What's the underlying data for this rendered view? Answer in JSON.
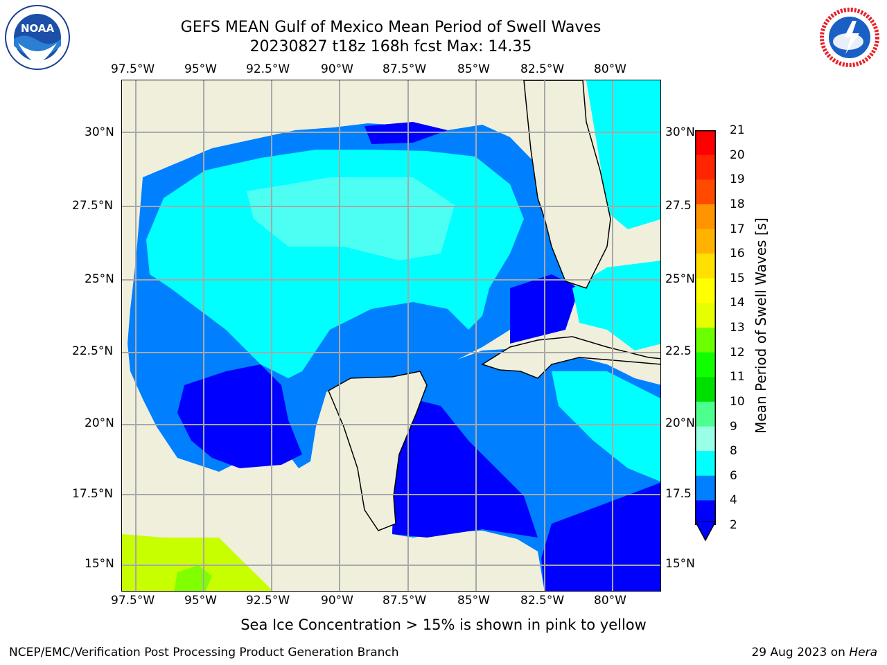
{
  "title": {
    "line1": "GEFS MEAN Gulf of Mexico Mean Period of Swell Waves",
    "line2": "20230827 t18z 168h fcst   Max: 14.35"
  },
  "axes": {
    "lon_labels": [
      "97.5°W",
      "95°W",
      "92.5°W",
      "90°W",
      "87.5°W",
      "85°W",
      "82.5°W",
      "80°W"
    ],
    "lat_labels": [
      "30°N",
      "27.5°N",
      "25°N",
      "22.5°N",
      "20°N",
      "17.5°N",
      "15°N"
    ],
    "lat_labels_right": [
      "30°N",
      "27.5",
      "25°N",
      "22.5",
      "20°N",
      "17.5",
      "15°N"
    ],
    "lon_range": [
      -98,
      -78.3
    ],
    "lat_range": [
      14,
      31.8
    ],
    "grid": true
  },
  "colorbar": {
    "title": "Mean Period of Swell Waves [s]",
    "ticks": [
      "21",
      "20",
      "19",
      "18",
      "17",
      "16",
      "15",
      "14",
      "13",
      "12",
      "11",
      "10",
      "9",
      "8",
      "6",
      "4",
      "2"
    ],
    "colors": [
      "#ff0000",
      "#ff2500",
      "#ff4a00",
      "#ff6f00",
      "#ff9300",
      "#ffb300",
      "#ffe000",
      "#ffff00",
      "#e6ff00",
      "#c7ff00",
      "#6bff00",
      "#10ff00",
      "#00e000",
      "#4cff8f",
      "#99ffe6",
      "#4dfff2",
      "#00ffff",
      "#0080ff",
      "#0000ff"
    ],
    "extend": "min"
  },
  "footnote": "Sea Ice Concentration > 15% is shown in pink to yellow",
  "credit": "NCEP/EMC/Verification Post Processing Product Generation Branch",
  "date_prefix": "29 Aug 2023 on ",
  "date_host": "Hera",
  "logos": {
    "left": "NOAA",
    "right": "NATIONAL WEATHER SERVICE"
  },
  "colors": {
    "land": "#efefdc",
    "ocean_deep": "#0080ff",
    "ocean_light": "#00ffff",
    "low": "#0000ff",
    "grid": "#a8a8a8"
  }
}
